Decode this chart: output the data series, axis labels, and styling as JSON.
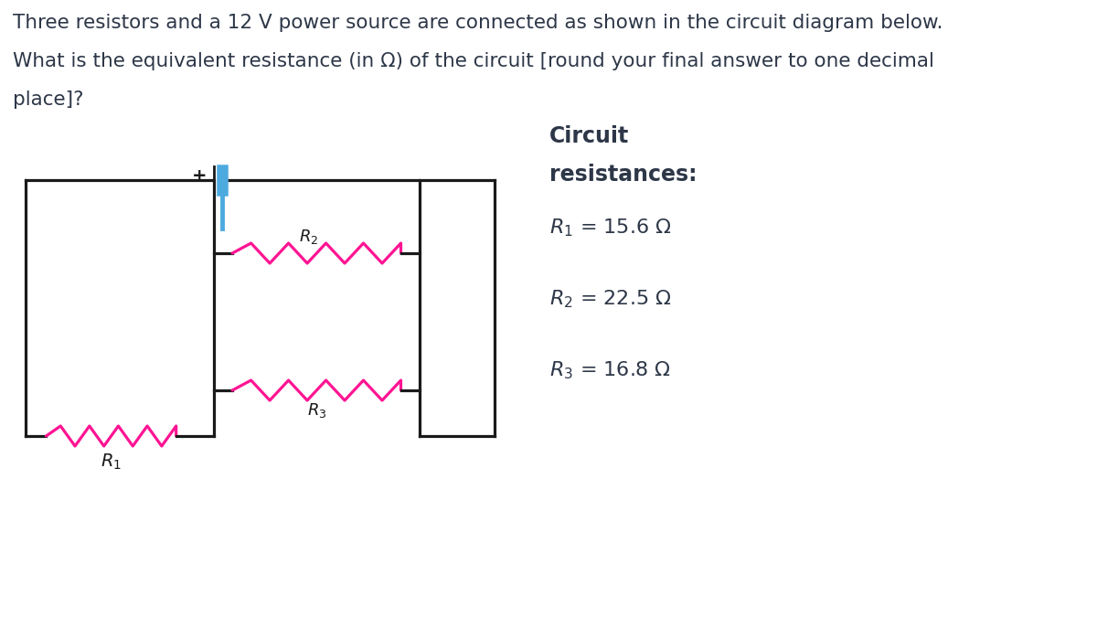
{
  "question_text_line1": "Three resistors and a 12 V power source are connected as shown in the circuit diagram below.",
  "question_text_line2": "What is the equivalent resistance (in Ω) of the circuit [round your final answer to one decimal",
  "question_text_line3": "place]?",
  "resistor_color": "#FF1493",
  "wire_color": "#1a1a1a",
  "battery_line_color": "#4DAADF",
  "bg_color": "#ffffff",
  "text_color": "#2d3748",
  "title_color": "#2d3748"
}
